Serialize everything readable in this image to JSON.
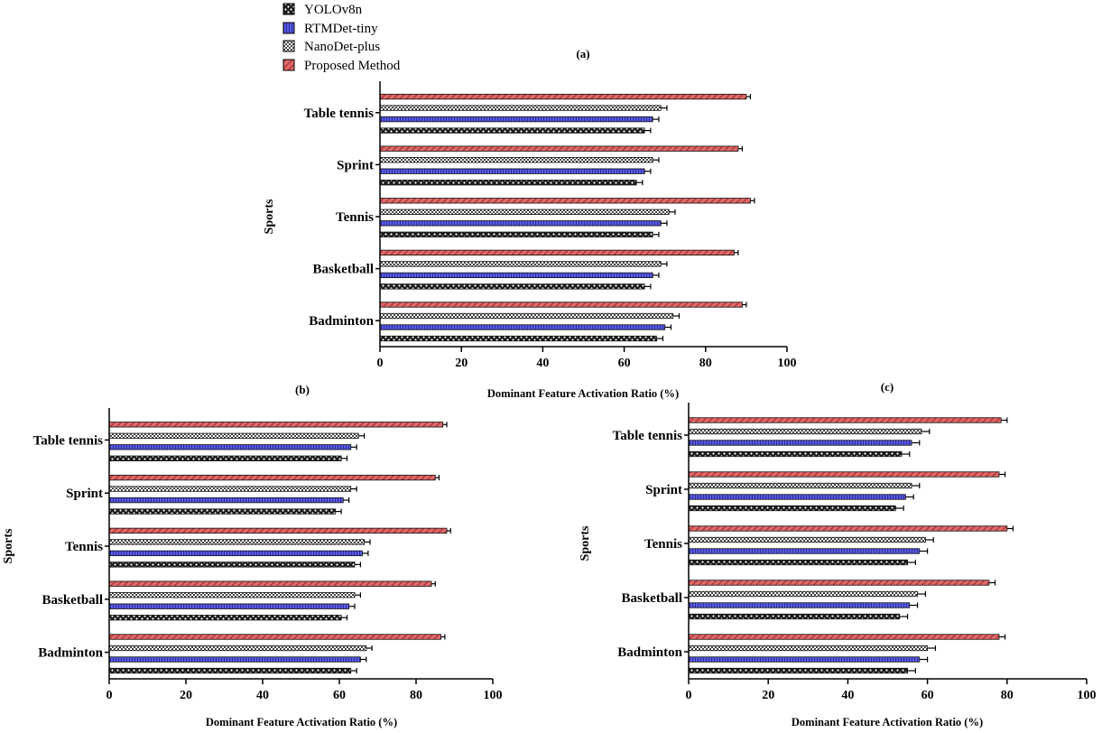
{
  "figure": {
    "series": [
      {
        "name": "YOLOv8n",
        "pattern": "dots",
        "color": "#222222"
      },
      {
        "name": "RTMDet-tiny",
        "pattern": "blue",
        "color": "#5a5ae0"
      },
      {
        "name": "NanoDet-plus",
        "pattern": "checker",
        "color": "#555555"
      },
      {
        "name": "Proposed Method",
        "pattern": "red",
        "color": "#d95f5f"
      }
    ]
  },
  "chart_data": [
    {
      "panel": "(a)",
      "type": "bar",
      "orientation": "horizontal",
      "categories": [
        "Badminton",
        "Basketball",
        "Tennis",
        "Sprint",
        "Table tennis"
      ],
      "series": [
        {
          "name": "YOLOv8n",
          "values": [
            68,
            65,
            67,
            63,
            65
          ],
          "errors": [
            1.5,
            1.5,
            1.5,
            1.5,
            1.5
          ]
        },
        {
          "name": "RTMDet-tiny",
          "values": [
            70,
            67,
            69,
            65,
            67
          ],
          "errors": [
            1.5,
            1.5,
            1.5,
            1.5,
            1.5
          ]
        },
        {
          "name": "NanoDet-plus",
          "values": [
            72,
            69,
            71,
            67,
            69
          ],
          "errors": [
            1.5,
            1.5,
            1.5,
            1.5,
            1.5
          ]
        },
        {
          "name": "Proposed Method",
          "values": [
            89,
            87,
            91,
            88,
            90
          ],
          "errors": [
            1.0,
            1.0,
            1.0,
            1.0,
            1.0
          ]
        }
      ],
      "xlim": [
        0,
        100
      ],
      "xticks": [
        "0",
        "20",
        "40",
        "60",
        "80",
        "100"
      ],
      "xlabel": "Dominant Feature Activation Ratio (%)",
      "ylabel": "Sports"
    },
    {
      "panel": "(b)",
      "type": "bar",
      "orientation": "horizontal",
      "categories": [
        "Badminton",
        "Basketball",
        "Tennis",
        "Sprint",
        "Table tennis"
      ],
      "series": [
        {
          "name": "YOLOv8n",
          "values": [
            63,
            60.5,
            64,
            59,
            60.5
          ],
          "errors": [
            1.5,
            1.5,
            1.5,
            1.5,
            1.5
          ]
        },
        {
          "name": "RTMDet-tiny",
          "values": [
            65.5,
            62.5,
            66,
            61,
            63
          ],
          "errors": [
            1.5,
            1.5,
            1.5,
            1.5,
            1.5
          ]
        },
        {
          "name": "NanoDet-plus",
          "values": [
            67,
            64,
            66.5,
            63,
            65
          ],
          "errors": [
            1.5,
            1.5,
            1.5,
            1.5,
            1.5
          ]
        },
        {
          "name": "Proposed Method",
          "values": [
            86.5,
            84,
            88,
            85,
            87
          ],
          "errors": [
            1.0,
            1.0,
            1.0,
            1.0,
            1.0
          ]
        }
      ],
      "xlim": [
        0,
        100
      ],
      "xticks": [
        "0",
        "20",
        "40",
        "60",
        "80",
        "100"
      ],
      "xlabel": "Dominant Feature Activation Ratio (%)",
      "ylabel": "Sports"
    },
    {
      "panel": "(c)",
      "type": "bar",
      "orientation": "horizontal",
      "categories": [
        "Badminton",
        "Basketball",
        "Tennis",
        "Sprint",
        "Table tennis"
      ],
      "series": [
        {
          "name": "YOLOv8n",
          "values": [
            55,
            53,
            55,
            52,
            53.5
          ],
          "errors": [
            2,
            2,
            2,
            2,
            2
          ]
        },
        {
          "name": "RTMDet-tiny",
          "values": [
            58,
            55.5,
            58,
            54.5,
            56
          ],
          "errors": [
            2,
            2,
            2,
            2,
            2
          ]
        },
        {
          "name": "NanoDet-plus",
          "values": [
            60,
            57.5,
            59.5,
            56,
            58.5
          ],
          "errors": [
            2,
            2,
            2,
            2,
            2
          ]
        },
        {
          "name": "Proposed Method",
          "values": [
            78,
            75.5,
            80,
            78,
            78.5
          ],
          "errors": [
            1.5,
            1.5,
            1.5,
            1.5,
            1.5
          ]
        }
      ],
      "xlim": [
        0,
        100
      ],
      "xticks": [
        "0",
        "20",
        "40",
        "60",
        "80",
        "100"
      ],
      "xlabel": "Dominant Feature Activation Ratio (%)",
      "ylabel": "Sports"
    }
  ]
}
